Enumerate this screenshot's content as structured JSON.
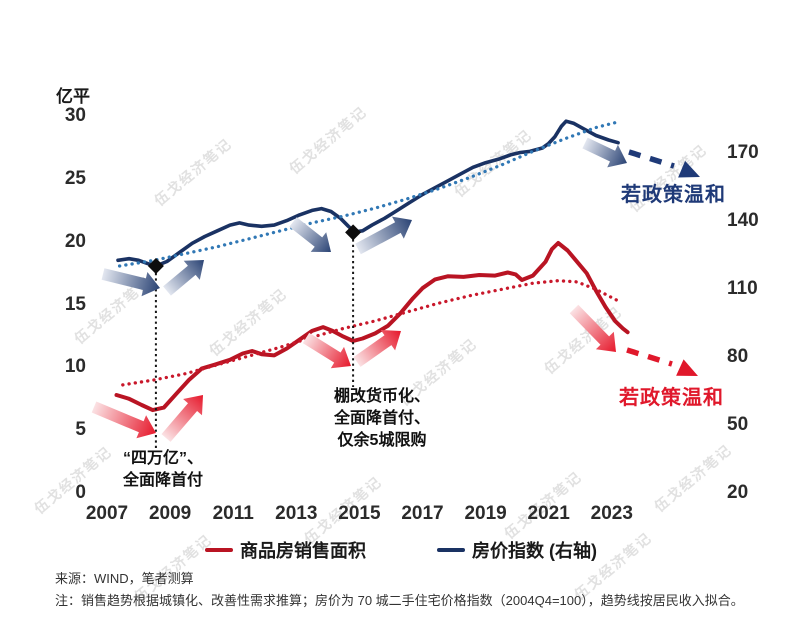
{
  "watermark": {
    "text": "伍戈经济笔记"
  },
  "chart_data": {
    "type": "line",
    "y_left": {
      "label": "亿平",
      "range": [
        0,
        30
      ],
      "ticks": [
        0,
        5,
        10,
        15,
        20,
        25,
        30
      ]
    },
    "y_right": {
      "range": [
        20,
        170
      ],
      "ticks": [
        20,
        50,
        80,
        110,
        140,
        170
      ]
    },
    "x_ticks": [
      "2007",
      "2009",
      "2011",
      "2013",
      "2015",
      "2017",
      "2019",
      "2021",
      "2023"
    ],
    "x_range": [
      2007,
      2023.7
    ],
    "grid": false,
    "legend_position": "bottom",
    "series": [
      {
        "name": "商品房销售面积",
        "axis": "left",
        "style": "solid",
        "color": "#b91423",
        "width": 4,
        "points": [
          [
            2007.3,
            7.8
          ],
          [
            2007.7,
            7.5
          ],
          [
            2008.1,
            7.0
          ],
          [
            2008.45,
            6.6
          ],
          [
            2008.8,
            6.8
          ],
          [
            2009.2,
            7.9
          ],
          [
            2009.6,
            9.0
          ],
          [
            2010.0,
            9.9
          ],
          [
            2010.4,
            10.2
          ],
          [
            2010.9,
            10.6
          ],
          [
            2011.3,
            11.1
          ],
          [
            2011.6,
            11.3
          ],
          [
            2011.9,
            11.05
          ],
          [
            2012.3,
            10.95
          ],
          [
            2012.7,
            11.5
          ],
          [
            2013.1,
            12.2
          ],
          [
            2013.5,
            12.9
          ],
          [
            2013.85,
            13.2
          ],
          [
            2014.15,
            12.9
          ],
          [
            2014.45,
            12.5
          ],
          [
            2014.8,
            12.1
          ],
          [
            2015.1,
            12.3
          ],
          [
            2015.5,
            12.7
          ],
          [
            2015.9,
            13.3
          ],
          [
            2016.3,
            14.3
          ],
          [
            2016.7,
            15.5
          ],
          [
            2017.0,
            16.3
          ],
          [
            2017.4,
            17.0
          ],
          [
            2017.8,
            17.25
          ],
          [
            2018.3,
            17.2
          ],
          [
            2018.8,
            17.35
          ],
          [
            2019.3,
            17.3
          ],
          [
            2019.7,
            17.55
          ],
          [
            2019.95,
            17.4
          ],
          [
            2020.15,
            16.95
          ],
          [
            2020.5,
            17.3
          ],
          [
            2020.9,
            18.4
          ],
          [
            2021.1,
            19.4
          ],
          [
            2021.3,
            19.9
          ],
          [
            2021.6,
            19.3
          ],
          [
            2021.9,
            18.4
          ],
          [
            2022.2,
            17.5
          ],
          [
            2022.5,
            16.1
          ],
          [
            2022.8,
            14.8
          ],
          [
            2023.1,
            13.7
          ],
          [
            2023.35,
            13.1
          ],
          [
            2023.5,
            12.8
          ]
        ]
      },
      {
        "name": "商品房销售面积趋势线",
        "axis": "left",
        "style": "dotted",
        "color": "#c9182b",
        "width": 3.3,
        "points": [
          [
            2007.5,
            8.6
          ],
          [
            2008.5,
            9.0
          ],
          [
            2009.5,
            9.5
          ],
          [
            2010.5,
            10.2
          ],
          [
            2011.5,
            10.9
          ],
          [
            2012.5,
            11.6
          ],
          [
            2013.5,
            12.4
          ],
          [
            2014.5,
            13.1
          ],
          [
            2015.5,
            13.7
          ],
          [
            2016.5,
            14.4
          ],
          [
            2017.5,
            15.1
          ],
          [
            2018.5,
            15.7
          ],
          [
            2019.5,
            16.2
          ],
          [
            2020.5,
            16.7
          ],
          [
            2021.3,
            16.9
          ],
          [
            2021.9,
            16.8
          ],
          [
            2022.5,
            16.2
          ],
          [
            2023.2,
            15.3
          ]
        ]
      },
      {
        "name": "房价指数 (右轴)",
        "axis": "right",
        "style": "solid",
        "color": "#1a3263",
        "width": 3.6,
        "points": [
          [
            2007.35,
            122.5
          ],
          [
            2007.7,
            123.2
          ],
          [
            2008.0,
            122.5
          ],
          [
            2008.3,
            121
          ],
          [
            2008.55,
            120
          ],
          [
            2008.9,
            122
          ],
          [
            2009.3,
            126
          ],
          [
            2009.7,
            130
          ],
          [
            2010.1,
            133
          ],
          [
            2010.5,
            135.5
          ],
          [
            2010.9,
            138
          ],
          [
            2011.2,
            139
          ],
          [
            2011.5,
            138
          ],
          [
            2011.9,
            137.5
          ],
          [
            2012.3,
            138
          ],
          [
            2012.7,
            140
          ],
          [
            2013.1,
            142.5
          ],
          [
            2013.5,
            144.5
          ],
          [
            2013.8,
            145.3
          ],
          [
            2014.1,
            144
          ],
          [
            2014.4,
            141
          ],
          [
            2014.65,
            137.5
          ],
          [
            2014.85,
            135
          ],
          [
            2015.1,
            135.5
          ],
          [
            2015.4,
            138
          ],
          [
            2015.8,
            141
          ],
          [
            2016.2,
            144.5
          ],
          [
            2016.6,
            148
          ],
          [
            2017.0,
            151.5
          ],
          [
            2017.4,
            154.5
          ],
          [
            2017.8,
            157.5
          ],
          [
            2018.2,
            160.5
          ],
          [
            2018.6,
            163.5
          ],
          [
            2019.0,
            165.5
          ],
          [
            2019.4,
            167
          ],
          [
            2019.8,
            169
          ],
          [
            2020.1,
            170
          ],
          [
            2020.4,
            170.5
          ],
          [
            2020.8,
            172
          ],
          [
            2021.0,
            174
          ],
          [
            2021.2,
            177
          ],
          [
            2021.4,
            181.5
          ],
          [
            2021.55,
            183.8
          ],
          [
            2021.8,
            182.8
          ],
          [
            2022.1,
            180.5
          ],
          [
            2022.5,
            177.5
          ],
          [
            2022.9,
            175.5
          ],
          [
            2023.2,
            174.3
          ]
        ]
      },
      {
        "name": "房价指数趋势线",
        "axis": "right",
        "style": "dotted",
        "color": "#3178b5",
        "width": 3.3,
        "points": [
          [
            2007.4,
            120
          ],
          [
            2008.5,
            122.5
          ],
          [
            2009.5,
            125.5
          ],
          [
            2010.5,
            128.5
          ],
          [
            2011.5,
            132
          ],
          [
            2012.5,
            135.5
          ],
          [
            2013.5,
            139
          ],
          [
            2014.5,
            142
          ],
          [
            2015.5,
            145.5
          ],
          [
            2016.5,
            149.5
          ],
          [
            2017.5,
            154
          ],
          [
            2018.5,
            159
          ],
          [
            2019.5,
            164.5
          ],
          [
            2020.5,
            170.5
          ],
          [
            2021.5,
            176
          ],
          [
            2022.5,
            181
          ],
          [
            2023.2,
            183.5
          ]
        ]
      }
    ],
    "events": [
      {
        "year": 2008.55,
        "marker_value": 120,
        "lines": [
          "“四万亿”、",
          "全面降首付"
        ]
      },
      {
        "year": 2014.8,
        "marker_value": 134.8,
        "lines": [
          "棚改货币化、",
          "全面降首付、",
          "仅余5城限购"
        ]
      }
    ],
    "projections": [
      {
        "label": "若政策温和",
        "color": "#1f3a78"
      },
      {
        "label": "若政策温和",
        "color": "#e0182b"
      }
    ]
  },
  "legend": {
    "items": [
      {
        "label": "商品房销售面积",
        "color": "#b91423"
      },
      {
        "label": "房价指数 (右轴)",
        "color": "#1a3263"
      }
    ]
  },
  "footer": {
    "source": "来源：WIND，笔者测算",
    "note": "注：销售趋势根据城镇化、改善性需求推算；房价为 70 城二手住宅价格指数（2004Q4=100），趋势线按居民收入拟合。"
  }
}
